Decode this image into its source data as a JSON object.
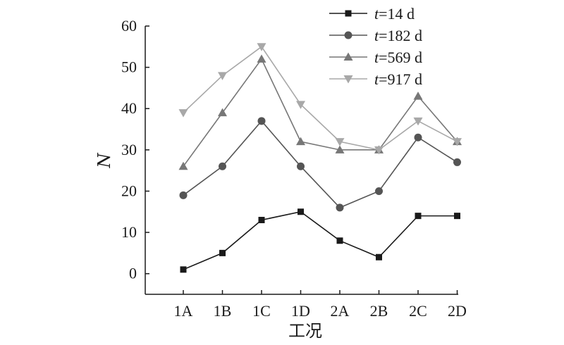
{
  "chart_data": {
    "type": "line",
    "title": "",
    "xlabel": "工况",
    "ylabel": "N",
    "categories": [
      "1A",
      "1B",
      "1C",
      "1D",
      "2A",
      "2B",
      "2C",
      "2D"
    ],
    "ylim": [
      -5,
      60
    ],
    "yticks": [
      0,
      10,
      20,
      30,
      40,
      50,
      60
    ],
    "grid": false,
    "legend_position": "top-right",
    "series": [
      {
        "name_var": "t",
        "name_rest": "=14 d",
        "name": "t=14 d",
        "marker": "square",
        "color": "#1a1a1a",
        "values": [
          1,
          5,
          13,
          15,
          8,
          4,
          14,
          14
        ]
      },
      {
        "name_var": "t",
        "name_rest": "=182 d",
        "name": "t=182 d",
        "marker": "circle",
        "color": "#555555",
        "values": [
          19,
          26,
          37,
          26,
          16,
          20,
          33,
          27
        ]
      },
      {
        "name_var": "t",
        "name_rest": "=569 d",
        "name": "t=569 d",
        "marker": "triangle-up",
        "color": "#777777",
        "values": [
          26,
          39,
          52,
          32,
          30,
          30,
          43,
          32
        ]
      },
      {
        "name_var": "t",
        "name_rest": "=917 d",
        "name": "t=917 d",
        "marker": "triangle-down",
        "color": "#a8a8a8",
        "values": [
          39,
          48,
          55,
          41,
          32,
          30,
          37,
          32
        ]
      }
    ]
  }
}
